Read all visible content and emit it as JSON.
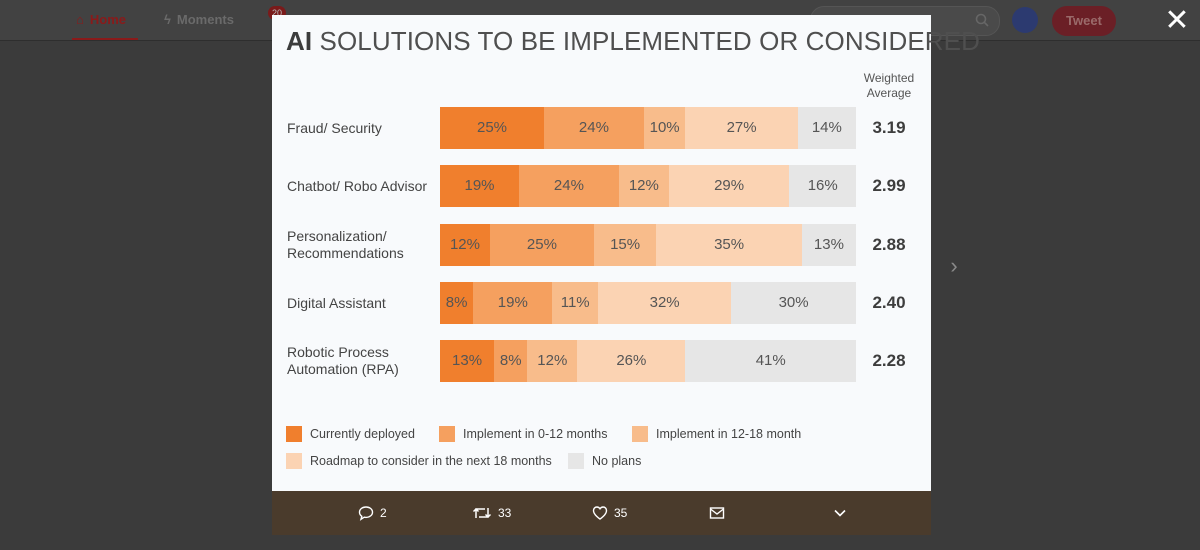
{
  "nav": {
    "home_label": "Home",
    "moments_label": "Moments",
    "notifications_count": "20",
    "tweet_label": "Tweet"
  },
  "modal": {
    "close_glyph": "✕",
    "next_glyph": "›"
  },
  "chart_title": {
    "bold": "AI",
    "rest": " SOLUTIONS TO BE IMPLEMENTED OR CONSIDERED"
  },
  "weighted_average_header": [
    "Weighted",
    "Average"
  ],
  "colors": {
    "currently_deployed": "#f07f2d",
    "implement_0_12": "#f5a05f",
    "implement_12_18": "#f8bc8b",
    "roadmap_18": "#fbd3b3",
    "no_plans": "#e6e6e6"
  },
  "chart_data": {
    "type": "bar",
    "orientation": "horizontal-stacked-100",
    "title": "AI SOLUTIONS TO BE IMPLEMENTED OR CONSIDERED",
    "series_names": [
      "Currently deployed",
      "Implement in 0-12 months",
      "Implement in 12-18 month",
      "Roadmap to consider in the next 18 months",
      "No plans"
    ],
    "categories": [
      [
        "Fraud/ Security"
      ],
      [
        "Chatbot/ Robo Advisor"
      ],
      [
        "Personalization/",
        "Recommendations"
      ],
      [
        "Digital Assistant"
      ],
      [
        "Robotic Process",
        "Automation (RPA)"
      ]
    ],
    "values": [
      [
        25,
        24,
        10,
        27,
        14
      ],
      [
        19,
        24,
        12,
        29,
        16
      ],
      [
        12,
        25,
        15,
        35,
        13
      ],
      [
        8,
        19,
        11,
        32,
        30
      ],
      [
        13,
        8,
        12,
        26,
        41
      ]
    ],
    "weighted_average": [
      "3.19",
      "2.99",
      "2.88",
      "2.40",
      "2.28"
    ],
    "unit": "%"
  },
  "legend": [
    "Currently deployed",
    "Implement in 0-12 months",
    "Implement in 12-18 month",
    "Roadmap to consider in the next 18 months",
    "No plans"
  ],
  "actions": {
    "replies": "2",
    "retweets": "33",
    "likes": "35"
  }
}
